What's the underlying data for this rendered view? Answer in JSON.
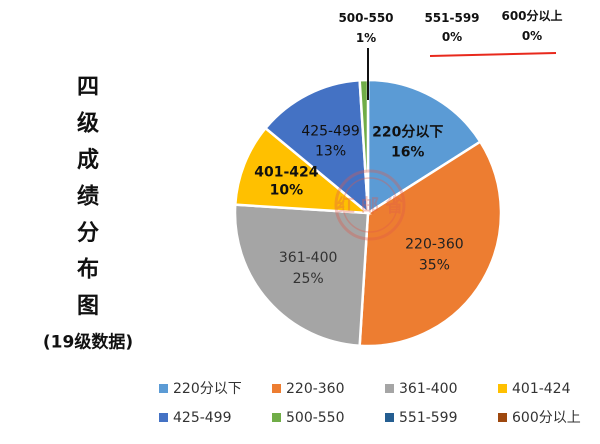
{
  "chart_data": {
    "type": "pie",
    "title_vertical": [
      "四",
      "级",
      "成",
      "绩",
      "分",
      "布",
      "图"
    ],
    "subtitle": "(19级数据)",
    "categories": [
      "220分以下",
      "220-360",
      "361-400",
      "401-424",
      "425-499",
      "500-550",
      "551-599",
      "600分以上"
    ],
    "values": [
      16,
      35,
      25,
      10,
      13,
      1,
      0,
      0
    ],
    "value_labels": [
      "16%",
      "35%",
      "25%",
      "10%",
      "13%",
      "1%",
      "0%",
      "0%"
    ],
    "colors": [
      "#5B9BD5",
      "#ED7D31",
      "#A5A5A5",
      "#FFC000",
      "#4472C4",
      "#70AD47",
      "#255E91",
      "#9E480E"
    ],
    "legend_position": "bottom"
  },
  "annotation": {
    "underline_color": "#E8291C"
  },
  "watermark": {
    "text": "红 邮 省"
  }
}
